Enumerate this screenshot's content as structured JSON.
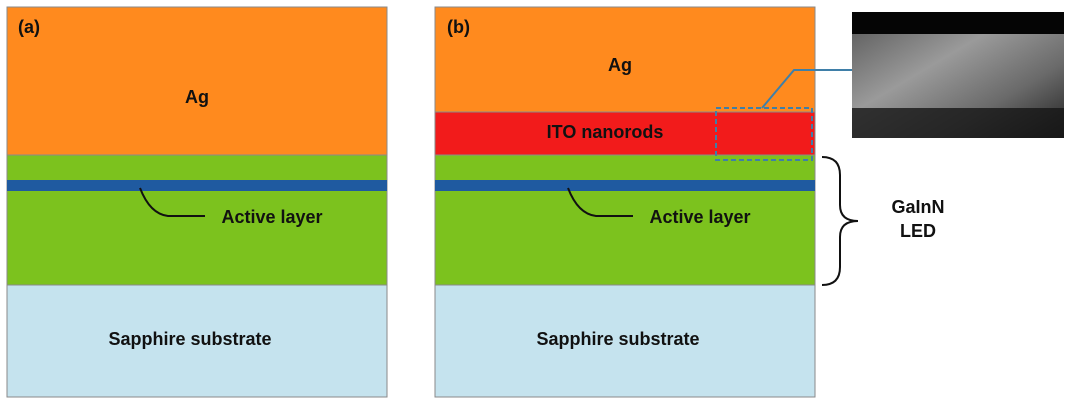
{
  "panels": [
    {
      "label": "(a)",
      "ag": "Ag",
      "active": "Active layer",
      "substrate": "Sapphire substrate"
    },
    {
      "label": "(b)",
      "ag": "Ag",
      "ito": "ITO nanorods",
      "active": "Active layer",
      "substrate": "Sapphire substrate"
    }
  ],
  "annotation": {
    "lines": [
      "GaInN",
      "LED"
    ]
  }
}
